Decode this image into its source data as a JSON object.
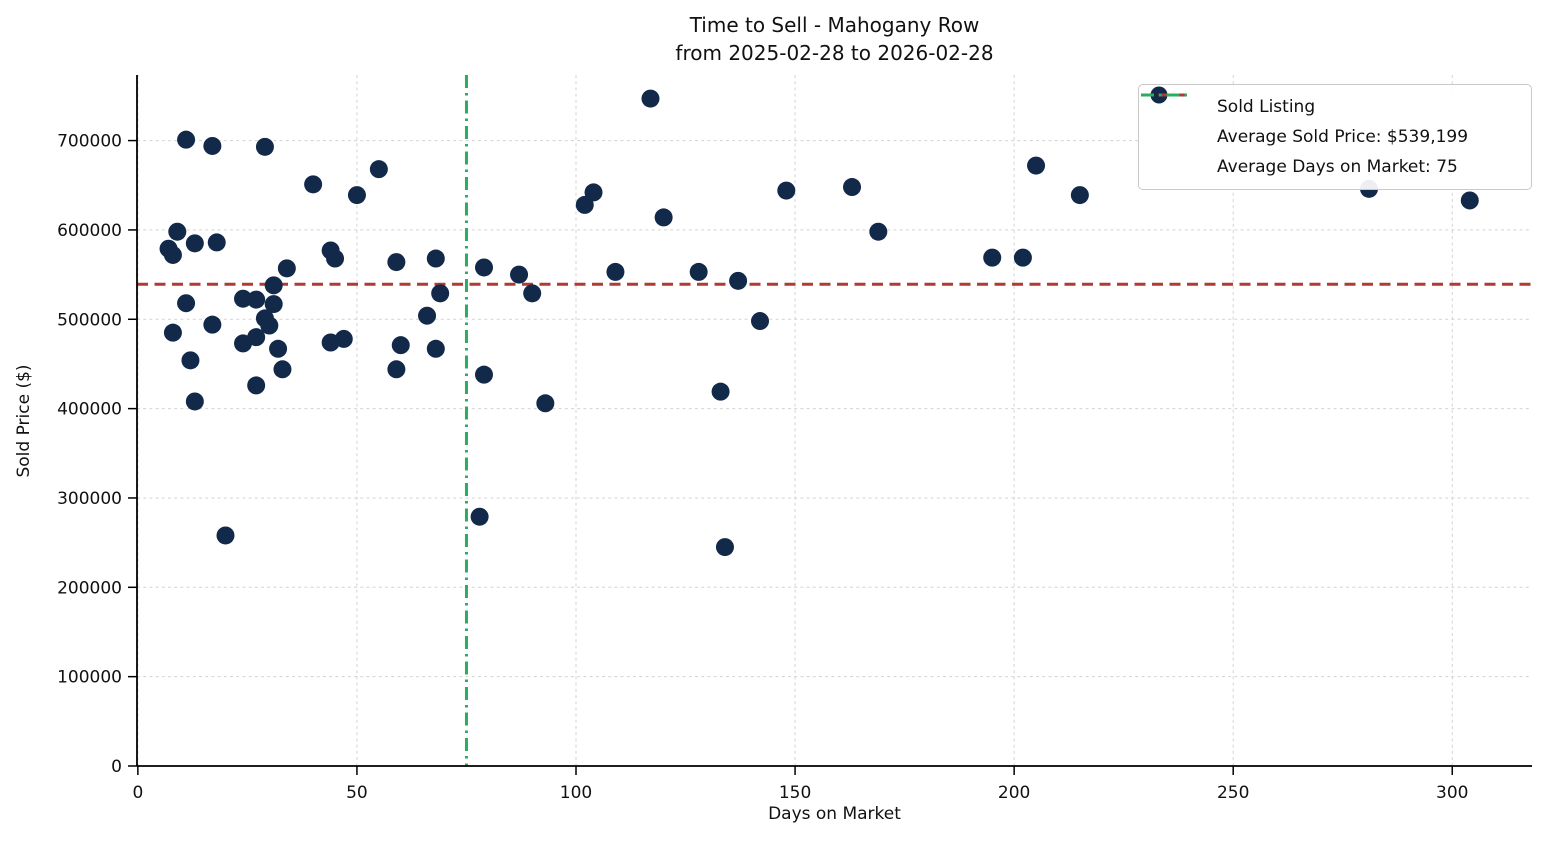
{
  "title": {
    "line1": "Time to Sell - Mahogany Row",
    "line2": "from 2025-02-28 to 2026-02-28"
  },
  "colors": {
    "point": "#12294a",
    "avg_price_line": "#b23a33",
    "avg_days_line": "#2bad60",
    "grid": "#cccccc",
    "text": "#111111"
  },
  "chart_data": {
    "type": "scatter",
    "title": "Time to Sell - Mahogany Row",
    "subtitle": "from 2025-02-28 to 2026-02-28",
    "xlabel": "Days on Market",
    "ylabel": "Sold Price ($)",
    "xlim": [
      -0.2,
      318.2
    ],
    "ylim": [
      0,
      773400
    ],
    "x_ticks": [
      0,
      50,
      100,
      150,
      200,
      250,
      300
    ],
    "y_ticks": [
      0,
      100000,
      200000,
      300000,
      400000,
      500000,
      600000,
      700000
    ],
    "grid": true,
    "legend_position": "upper right",
    "series": [
      {
        "name": "Sold Listing",
        "color": "#12294a",
        "points": [
          [
            7,
            579000
          ],
          [
            8,
            572000
          ],
          [
            8,
            485000
          ],
          [
            9,
            598000
          ],
          [
            11,
            701000
          ],
          [
            11,
            518000
          ],
          [
            12,
            454000
          ],
          [
            13,
            585000
          ],
          [
            13,
            408000
          ],
          [
            17,
            694000
          ],
          [
            17,
            494000
          ],
          [
            18,
            586000
          ],
          [
            20,
            258000
          ],
          [
            24,
            523000
          ],
          [
            24,
            473000
          ],
          [
            27,
            522000
          ],
          [
            27,
            480000
          ],
          [
            27,
            426000
          ],
          [
            29,
            693000
          ],
          [
            29,
            501000
          ],
          [
            30,
            493000
          ],
          [
            31,
            538000
          ],
          [
            31,
            517000
          ],
          [
            32,
            467000
          ],
          [
            33,
            444000
          ],
          [
            34,
            557000
          ],
          [
            40,
            651000
          ],
          [
            44,
            577000
          ],
          [
            44,
            474000
          ],
          [
            45,
            568000
          ],
          [
            47,
            478000
          ],
          [
            50,
            639000
          ],
          [
            55,
            668000
          ],
          [
            59,
            564000
          ],
          [
            59,
            444000
          ],
          [
            60,
            471000
          ],
          [
            66,
            504000
          ],
          [
            68,
            568000
          ],
          [
            68,
            467000
          ],
          [
            69,
            529000
          ],
          [
            78,
            279000
          ],
          [
            79,
            558000
          ],
          [
            79,
            438000
          ],
          [
            87,
            550000
          ],
          [
            90,
            529000
          ],
          [
            93,
            406000
          ],
          [
            102,
            628000
          ],
          [
            104,
            642000
          ],
          [
            109,
            553000
          ],
          [
            117,
            747000
          ],
          [
            120,
            614000
          ],
          [
            128,
            553000
          ],
          [
            133,
            419000
          ],
          [
            134,
            245000
          ],
          [
            137,
            543000
          ],
          [
            142,
            498000
          ],
          [
            148,
            644000
          ],
          [
            163,
            648000
          ],
          [
            169,
            598000
          ],
          [
            195,
            569000
          ],
          [
            202,
            569000
          ],
          [
            205,
            672000
          ],
          [
            215,
            639000
          ],
          [
            281,
            646000
          ],
          [
            304,
            633000
          ]
        ]
      }
    ],
    "reference_lines": [
      {
        "name": "Average Sold Price: $539,199",
        "orientation": "horizontal",
        "value": 539199,
        "color": "#b23a33",
        "style": "dashed"
      },
      {
        "name": "Average Days on Market: 75",
        "orientation": "vertical",
        "value": 75,
        "color": "#2bad60",
        "style": "dashdot"
      }
    ]
  }
}
